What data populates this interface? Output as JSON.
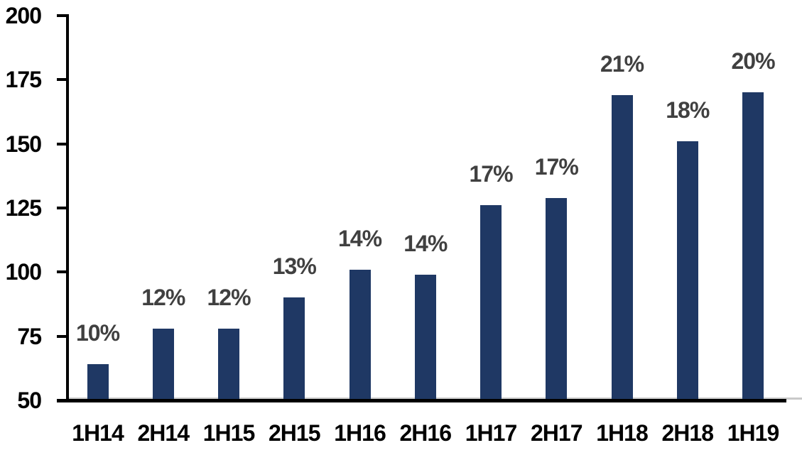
{
  "chart_data": {
    "type": "bar",
    "title": "",
    "xlabel": "",
    "ylabel": "",
    "categories": [
      "1H14",
      "2H14",
      "1H15",
      "2H15",
      "1H16",
      "2H16",
      "1H17",
      "2H17",
      "1H18",
      "2H18",
      "1H19"
    ],
    "values": [
      64,
      78,
      78,
      90,
      101,
      99,
      126,
      129,
      169,
      151,
      170
    ],
    "bar_labels": [
      "10%",
      "12%",
      "12%",
      "13%",
      "14%",
      "14%",
      "17%",
      "17%",
      "21%",
      "18%",
      "20%"
    ],
    "yticks": [
      50,
      75,
      100,
      125,
      150,
      175,
      200
    ],
    "ylim": [
      50,
      200
    ],
    "grid": false,
    "legend": false,
    "colors": {
      "bar": "#1F3864",
      "bar_label": "#404040",
      "axis": "#000000",
      "tick_label": "#000000",
      "baseline_light": "#C9C9C9",
      "background": "#FFFFFF"
    }
  }
}
